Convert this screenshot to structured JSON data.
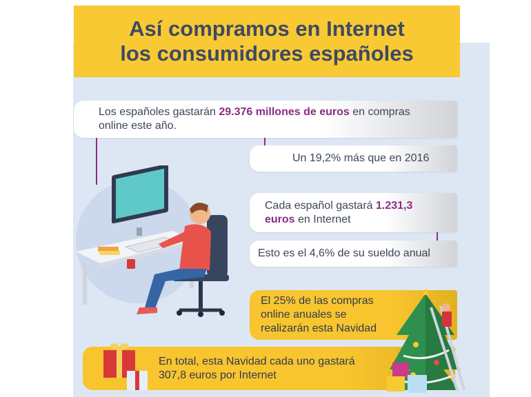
{
  "header": {
    "title_line1": "Así compramos en Internet",
    "title_line2": "los consumidores españoles"
  },
  "facts": {
    "spend_prefix": "Los españoles gastarán ",
    "spend_highlight": "29.376 millones de euros",
    "spend_suffix": " en compras",
    "spend_line2": "online este año.",
    "growth": "Un 19,2% más que en 2016",
    "per_person_prefix": "Cada español gastará ",
    "per_person_highlight_1": "1.231,3",
    "per_person_highlight_2": "euros",
    "per_person_suffix": " en Internet",
    "salary_share": "Esto es el 4,6% de su sueldo anual",
    "christmas_line1": "El 25% de las compras",
    "christmas_line2": "online anuales se",
    "christmas_line3": "realizarán esta Navidad",
    "total_line1": "En total, esta Navidad cada uno gastará",
    "total_line2": "307,8 euros por Internet"
  },
  "colors": {
    "yellow": "#f9c934",
    "purple_highlight": "#8a2c83",
    "panel_bg": "#dde6f3",
    "title_text": "#3d4a63"
  },
  "icons": [
    "desk-illustration",
    "person-at-computer-illustration",
    "christmas-tree-illustration",
    "gift-box-icon"
  ]
}
